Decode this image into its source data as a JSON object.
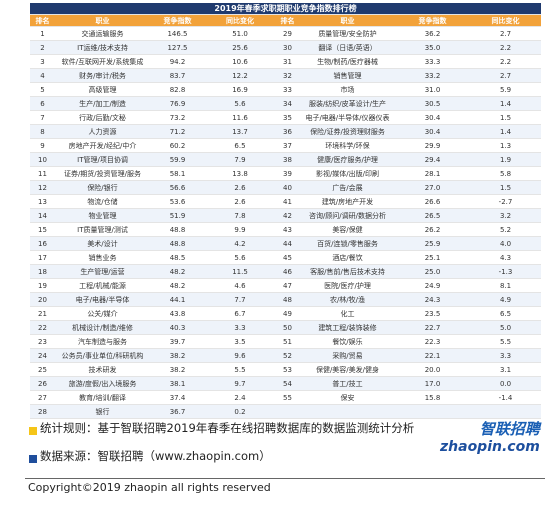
{
  "table": {
    "title": "2019年春季求职期职业竞争指数排行榜",
    "header": [
      "排名",
      "职业",
      "竞争指数",
      "同比变化",
      "排名",
      "职业",
      "竞争指数",
      "同比变化"
    ],
    "rows": [
      [
        "1",
        "交通运输服务",
        "146.5",
        "51.0",
        "29",
        "质量管理/安全防护",
        "36.2",
        "2.7"
      ],
      [
        "2",
        "IT运维/技术支持",
        "127.5",
        "25.6",
        "30",
        "翻译（日语/英语）",
        "35.0",
        "2.2"
      ],
      [
        "3",
        "软件/互联网开发/系统集成",
        "94.2",
        "10.6",
        "31",
        "生物/制药/医疗器械",
        "33.3",
        "2.2"
      ],
      [
        "4",
        "财务/审计/税务",
        "83.7",
        "12.2",
        "32",
        "销售管理",
        "33.2",
        "2.7"
      ],
      [
        "5",
        "高级管理",
        "82.8",
        "16.9",
        "33",
        "市场",
        "31.0",
        "5.9"
      ],
      [
        "6",
        "生产/加工/制造",
        "76.9",
        "5.6",
        "34",
        "服装/纺织/皮革设计/生产",
        "30.5",
        "1.4"
      ],
      [
        "7",
        "行政/后勤/文秘",
        "73.2",
        "11.6",
        "35",
        "电子/电器/半导体/仪器仪表",
        "30.4",
        "1.5"
      ],
      [
        "8",
        "人力资源",
        "71.2",
        "13.7",
        "36",
        "保险/证券/投资理财服务",
        "30.4",
        "1.4"
      ],
      [
        "9",
        "房地产开发/经纪/中介",
        "60.2",
        "6.5",
        "37",
        "环境科学/环保",
        "29.9",
        "1.3"
      ],
      [
        "10",
        "IT管理/项目协调",
        "59.9",
        "7.9",
        "38",
        "健康/医疗服务/护理",
        "29.4",
        "1.9"
      ],
      [
        "11",
        "证券/期货/投资管理/服务",
        "58.1",
        "13.8",
        "39",
        "影视/媒体/出版/印刷",
        "28.1",
        "5.8"
      ],
      [
        "12",
        "保险/银行",
        "56.6",
        "2.6",
        "40",
        "广告/会展",
        "27.0",
        "1.5"
      ],
      [
        "13",
        "物流/仓储",
        "53.6",
        "2.6",
        "41",
        "建筑/房地产开发",
        "26.6",
        "-2.7"
      ],
      [
        "14",
        "物业管理",
        "51.9",
        "7.8",
        "42",
        "咨询/顾问/调研/数据分析",
        "26.5",
        "3.2"
      ],
      [
        "15",
        "IT质量管理/测试",
        "48.8",
        "9.9",
        "43",
        "美容/保健",
        "26.2",
        "5.2"
      ],
      [
        "16",
        "美术/设计",
        "48.8",
        "4.2",
        "44",
        "百货/连锁/零售服务",
        "25.9",
        "4.0"
      ],
      [
        "17",
        "销售业务",
        "48.5",
        "5.6",
        "45",
        "酒店/餐饮",
        "25.1",
        "4.3"
      ],
      [
        "18",
        "生产管理/运营",
        "48.2",
        "11.5",
        "46",
        "客服/售前/售后技术支持",
        "25.0",
        "-1.3"
      ],
      [
        "19",
        "工程/机械/能源",
        "48.2",
        "4.6",
        "47",
        "医院/医疗/护理",
        "24.9",
        "8.1"
      ],
      [
        "20",
        "电子/电器/半导体",
        "44.1",
        "7.7",
        "48",
        "农/林/牧/渔",
        "24.3",
        "4.9"
      ],
      [
        "21",
        "公关/媒介",
        "43.8",
        "6.7",
        "49",
        "化工",
        "23.5",
        "6.5"
      ],
      [
        "22",
        "机械设计/制造/维修",
        "40.3",
        "3.3",
        "50",
        "建筑工程/装饰装修",
        "22.7",
        "5.0"
      ],
      [
        "23",
        "汽车制造与服务",
        "39.7",
        "3.5",
        "51",
        "餐饮/娱乐",
        "22.3",
        "5.5"
      ],
      [
        "24",
        "公务员/事业单位/科研机构",
        "38.2",
        "9.6",
        "52",
        "采购/贸易",
        "22.1",
        "3.3"
      ],
      [
        "25",
        "技术研发",
        "38.2",
        "5.5",
        "53",
        "保健/美容/美发/健身",
        "20.0",
        "3.1"
      ],
      [
        "26",
        "旅游/度假/出入境服务",
        "38.1",
        "9.7",
        "54",
        "普工/技工",
        "17.0",
        "0.0"
      ],
      [
        "27",
        "教育/培训/翻译",
        "37.4",
        "2.4",
        "55",
        "保安",
        "15.8",
        "-1.4"
      ],
      [
        "28",
        "银行",
        "36.7",
        "0.2"
      ]
    ]
  },
  "footer": {
    "rule": "统计规则：基于智联招聘2019年春季在线招聘数据库的数据监测统计分析",
    "source": "数据来源：智联招聘（www.zhaopin.com）",
    "copyright": "Copyright©2019 zhaopin all rights reserved"
  },
  "logo": {
    "name": "智联招聘",
    "site": "zhaopin.com"
  }
}
